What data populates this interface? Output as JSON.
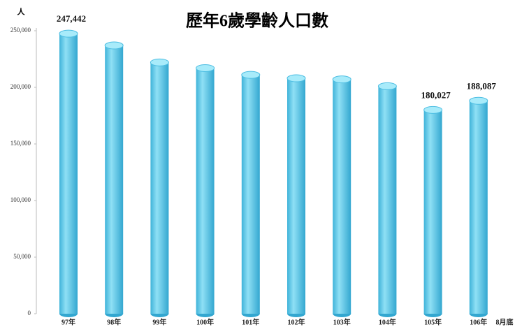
{
  "chart_data": {
    "type": "bar",
    "title": "歷年6歲學齡人口數",
    "y_unit": "人",
    "annotation": "8月底",
    "categories": [
      "97年",
      "98年",
      "99年",
      "100年",
      "101年",
      "102年",
      "103年",
      "104年",
      "105年",
      "106年"
    ],
    "values": [
      247442,
      237000,
      222000,
      217000,
      211000,
      208000,
      207000,
      201000,
      180027,
      188087
    ],
    "value_labels": [
      "247,442",
      null,
      null,
      null,
      null,
      null,
      null,
      null,
      "180,027",
      "188,087"
    ],
    "color": "#5bc8e8",
    "ylim": [
      0,
      250000
    ],
    "yticks": [
      0,
      {
        "value": 50000,
        "label": "50,000"
      },
      {
        "value": 100000,
        "label": "100,000"
      },
      {
        "value": 150000,
        "label": "150,000"
      },
      {
        "value": 200000,
        "label": "200,000"
      },
      {
        "value": 250000,
        "label": "250,000"
      }
    ],
    "grid": false
  }
}
